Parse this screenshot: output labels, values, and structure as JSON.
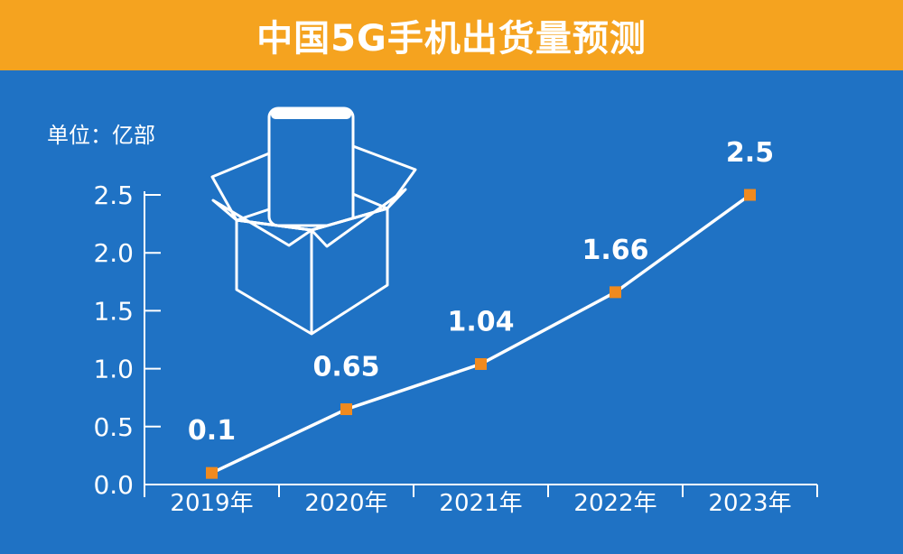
{
  "colors": {
    "background": "#1f72c4",
    "title_bar": "#f5a31f",
    "line": "#ffffff",
    "marker": "#f08a1e",
    "text": "#ffffff"
  },
  "icon": "phone-in-box-icon",
  "chart_data": {
    "type": "line",
    "title": "中国5G手机出货量预测",
    "unit_label": "单位：亿部",
    "categories": [
      "2019年",
      "2020年",
      "2021年",
      "2022年",
      "2023年"
    ],
    "values": [
      0.1,
      0.65,
      1.04,
      1.66,
      2.5
    ],
    "data_labels": [
      "0.1",
      "0.65",
      "1.04",
      "1.66",
      "2.5"
    ],
    "y_ticks": [
      "0.0",
      "0.5",
      "1.0",
      "1.5",
      "2.0",
      "2.5"
    ],
    "ylim": [
      0,
      2.5
    ],
    "grid": false,
    "legend": "none"
  }
}
